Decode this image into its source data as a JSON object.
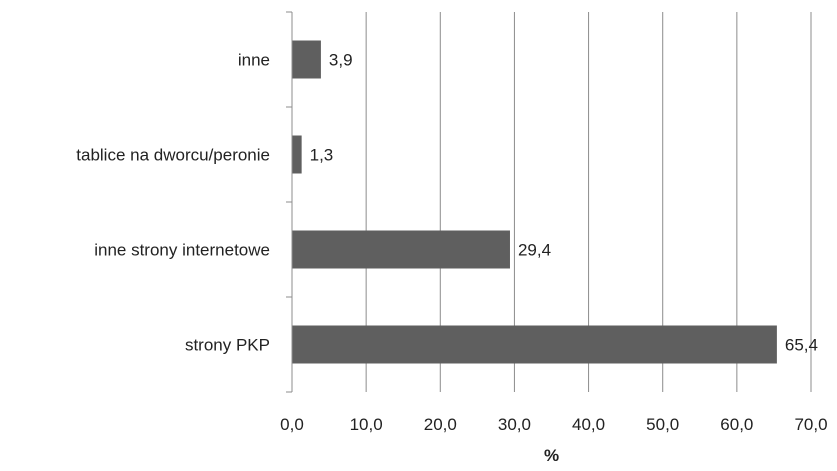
{
  "chart_data": {
    "type": "bar",
    "orientation": "horizontal",
    "categories": [
      "inne",
      "tablice na dworcu/peronie",
      "inne strony internetowe",
      "strony PKP"
    ],
    "values": [
      3.9,
      1.3,
      29.4,
      65.4
    ],
    "data_labels": [
      "3,9",
      "1,3",
      "29,4",
      "65,4"
    ],
    "xlabel": "%",
    "ylabel": "",
    "xlim": [
      0,
      70
    ],
    "x_ticks": [
      0,
      10,
      20,
      30,
      40,
      50,
      60,
      70
    ],
    "x_tick_labels": [
      "0,0",
      "10,0",
      "20,0",
      "30,0",
      "40,0",
      "50,0",
      "60,0",
      "70,0"
    ],
    "grid": "vertical",
    "legend": "none",
    "bar_color": "#5f5f5f",
    "grid_color": "#8c8c8c"
  }
}
